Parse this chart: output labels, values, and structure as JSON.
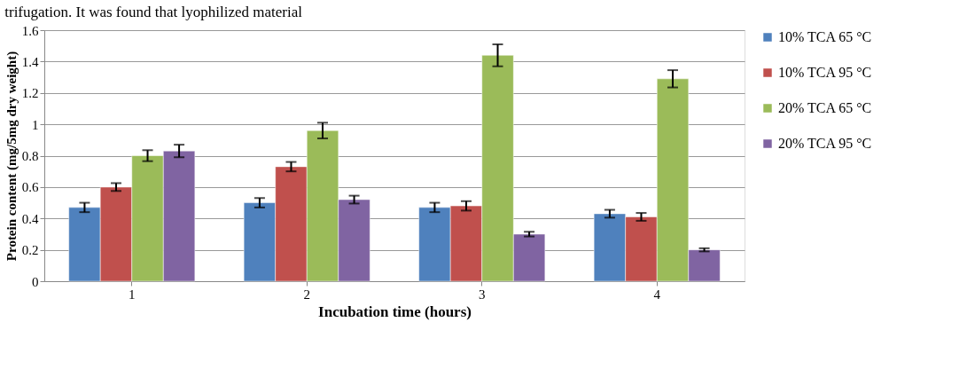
{
  "chart_data": {
    "type": "bar",
    "xlabel": "Incubation time (hours)",
    "ylabel": "Protein  content (mg/5mg dry weight)",
    "annotations": [
      "trifugation. It was found that lyophilized material"
    ],
    "categories": [
      "1",
      "2",
      "3",
      "4"
    ],
    "series": [
      {
        "name": "10% TCA 65 °C",
        "color": "#4f81bd",
        "values": [
          0.47,
          0.5,
          0.47,
          0.43
        ],
        "errors": [
          0.03,
          0.03,
          0.03,
          0.025
        ]
      },
      {
        "name": "10% TCA 95 °C",
        "color": "#c0504d",
        "values": [
          0.6,
          0.73,
          0.48,
          0.41
        ],
        "errors": [
          0.025,
          0.03,
          0.03,
          0.025
        ]
      },
      {
        "name": "20% TCA 65 °C",
        "color": "#9bbb59",
        "values": [
          0.8,
          0.96,
          1.44,
          1.29
        ],
        "errors": [
          0.035,
          0.05,
          0.07,
          0.055
        ]
      },
      {
        "name": "20% TCA 95 °C",
        "color": "#8064a2",
        "values": [
          0.83,
          0.52,
          0.3,
          0.2
        ],
        "errors": [
          0.04,
          0.025,
          0.015,
          0.01
        ]
      }
    ],
    "ylim": [
      0,
      1.6
    ],
    "yticks": [
      0,
      0.2,
      0.4,
      0.6,
      0.8,
      1,
      1.2,
      1.4,
      1.6
    ],
    "grid": "y",
    "legend": "right"
  }
}
